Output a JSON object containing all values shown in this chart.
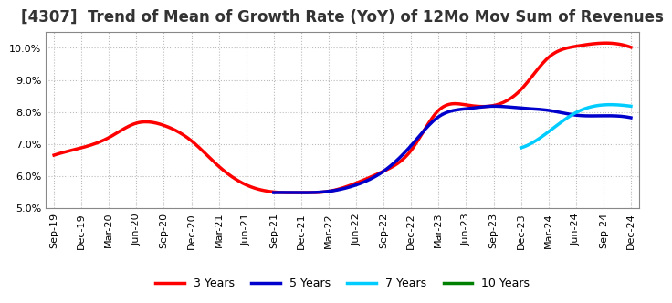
{
  "title": "[4307]  Trend of Mean of Growth Rate (YoY) of 12Mo Mov Sum of Revenues",
  "ylim": [
    0.05,
    0.105
  ],
  "yticks": [
    0.05,
    0.06,
    0.07,
    0.08,
    0.09,
    0.1
  ],
  "x_labels": [
    "Sep-19",
    "Dec-19",
    "Mar-20",
    "Jun-20",
    "Sep-20",
    "Dec-20",
    "Mar-21",
    "Jun-21",
    "Sep-21",
    "Dec-21",
    "Mar-22",
    "Jun-22",
    "Sep-22",
    "Dec-22",
    "Mar-23",
    "Jun-23",
    "Sep-23",
    "Dec-23",
    "Mar-24",
    "Jun-24",
    "Sep-24",
    "Dec-24"
  ],
  "series": {
    "3 Years": {
      "color": "#FF0000",
      "linewidth": 2.5,
      "indices": [
        0,
        1,
        2,
        3,
        4,
        5,
        6,
        7,
        8,
        9,
        10,
        11,
        12,
        13,
        14,
        15,
        16,
        17,
        18,
        19,
        20,
        21
      ],
      "values": [
        6.65,
        6.88,
        7.2,
        7.65,
        7.58,
        7.1,
        6.3,
        5.72,
        5.5,
        5.48,
        5.52,
        5.78,
        6.15,
        6.8,
        8.05,
        8.22,
        8.2,
        8.7,
        9.7,
        10.05,
        10.15,
        10.02
      ]
    },
    "5 Years": {
      "color": "#0000CC",
      "linewidth": 2.5,
      "indices": [
        8,
        9,
        10,
        11,
        12,
        13,
        14,
        15,
        16,
        17,
        18,
        19,
        20,
        21
      ],
      "values": [
        5.48,
        5.48,
        5.52,
        5.72,
        6.15,
        6.95,
        7.85,
        8.1,
        8.18,
        8.12,
        8.05,
        7.9,
        7.88,
        7.82
      ]
    },
    "7 Years": {
      "color": "#00CCFF",
      "linewidth": 2.5,
      "indices": [
        17,
        18,
        19,
        20,
        21
      ],
      "values": [
        6.88,
        7.38,
        7.98,
        8.22,
        8.18
      ]
    },
    "10 Years": {
      "color": "#008000",
      "linewidth": 2.5,
      "indices": [],
      "values": []
    }
  },
  "legend_labels": [
    "3 Years",
    "5 Years",
    "7 Years",
    "10 Years"
  ],
  "legend_colors": [
    "#FF0000",
    "#0000CC",
    "#00CCFF",
    "#008000"
  ],
  "background_color": "#FFFFFF",
  "plot_bg_color": "#FFFFFF",
  "grid_color": "#BBBBBB",
  "title_fontsize": 12,
  "tick_fontsize": 8
}
